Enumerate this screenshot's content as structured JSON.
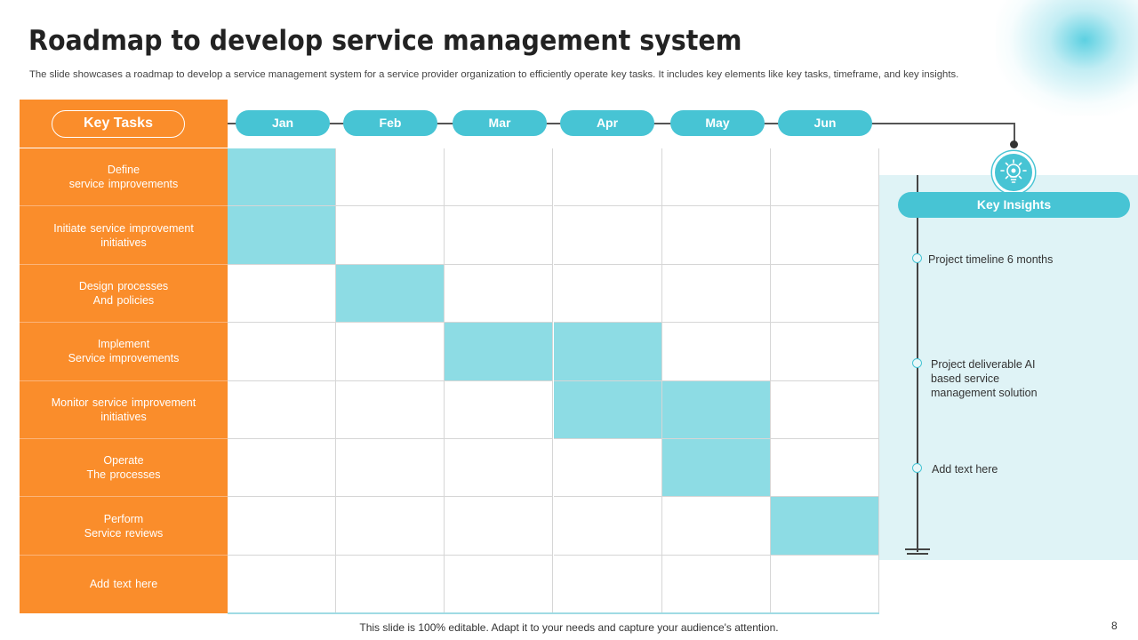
{
  "slide": {
    "title": "Roadmap to develop service management system",
    "subtitle": "The slide showcases a roadmap to develop a service management system for a service provider organization to efficiently operate key tasks. It includes key elements like key tasks, timeframe, and key insights.",
    "footer": "This slide is 100% editable. Adapt it to your needs and capture your audience's attention.",
    "page_number": "8"
  },
  "tasks": {
    "header": "Key Tasks",
    "items": [
      {
        "label": "Define\nservice improvements"
      },
      {
        "label": "Initiate service improvement\ninitiatives"
      },
      {
        "label": "Design processes\nAnd policies"
      },
      {
        "label": "Implement\nService improvements"
      },
      {
        "label": "Monitor service improvement\ninitiatives"
      },
      {
        "label": "Operate\nThe processes"
      },
      {
        "label": "Perform\nService reviews"
      },
      {
        "label": "Add text here"
      }
    ]
  },
  "months": [
    "Jan",
    "Feb",
    "Mar",
    "Apr",
    "May",
    "Jun"
  ],
  "schedule": [
    [
      true,
      false,
      false,
      false,
      false,
      false
    ],
    [
      true,
      false,
      false,
      false,
      false,
      false
    ],
    [
      false,
      true,
      false,
      false,
      false,
      false
    ],
    [
      false,
      false,
      true,
      true,
      false,
      false
    ],
    [
      false,
      false,
      false,
      true,
      true,
      false
    ],
    [
      false,
      false,
      false,
      false,
      true,
      false
    ],
    [
      false,
      false,
      false,
      false,
      false,
      true
    ],
    [
      false,
      false,
      false,
      false,
      false,
      false
    ]
  ],
  "insights": {
    "header": "Key Insights",
    "icon": "lightbulb-gear-icon",
    "items": [
      "Project timeline 6 months",
      "Project deliverable  AI\nbased service\nmanagement solution",
      "Add text here"
    ]
  },
  "colors": {
    "orange": "#fa8d2b",
    "teal": "#47c4d4",
    "light_teal": "#8ddce4",
    "panel": "#dff3f6"
  }
}
